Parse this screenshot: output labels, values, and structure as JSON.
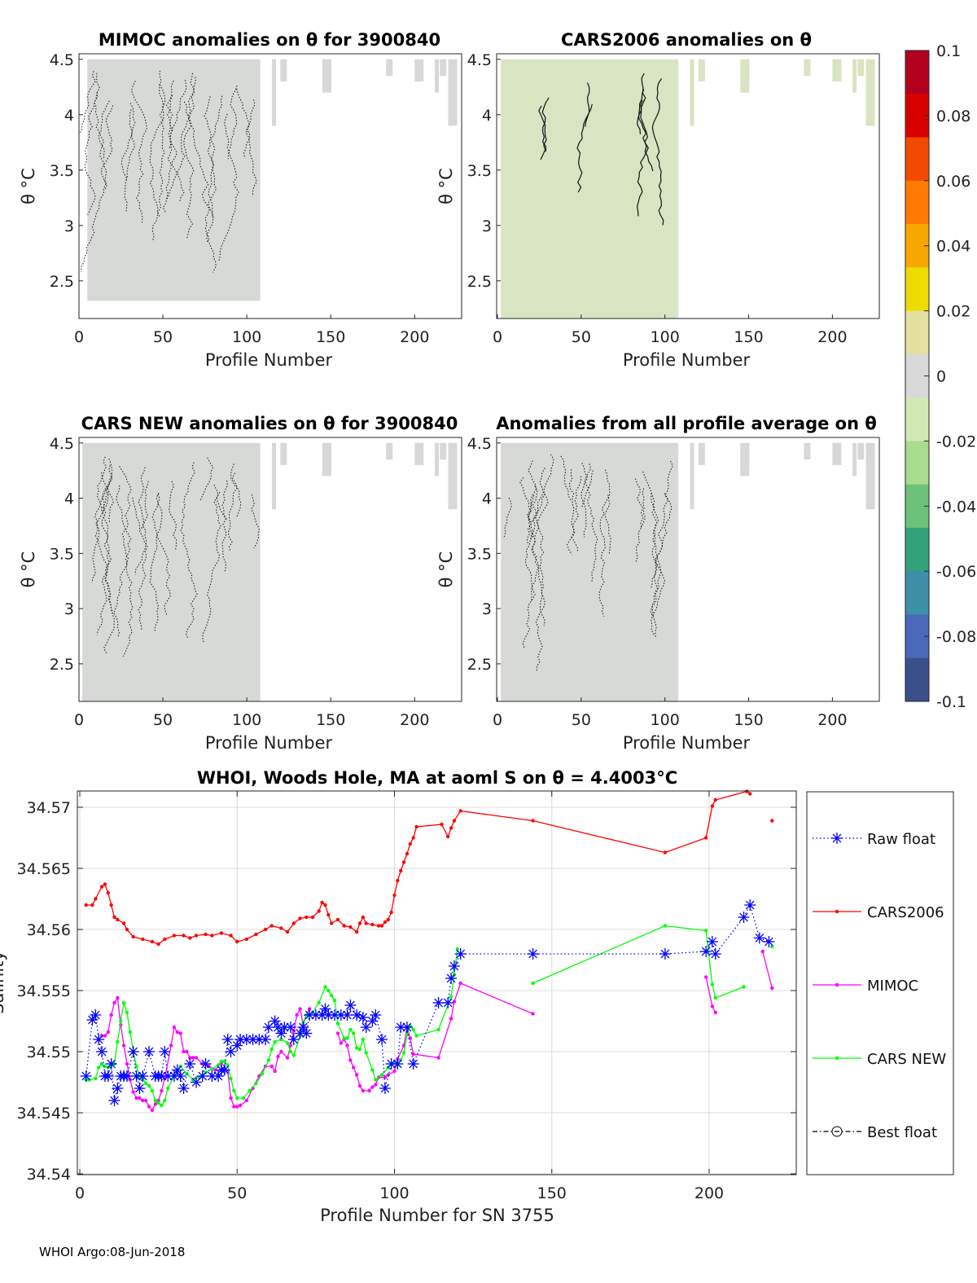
{
  "chart_data": [
    {
      "type": "heatmap",
      "title": "MIMOC anomalies on θ  for 3900840",
      "xlabel": "Profile Number",
      "ylabel": "θ °C",
      "xlim": [
        0,
        228
      ],
      "ylim": [
        2.16,
        4.55
      ],
      "xticks": [
        "0",
        "50",
        "100",
        "150",
        "200"
      ],
      "yticks": [
        "2.5",
        "3",
        "3.5",
        "4",
        "4.5"
      ],
      "data_extent": {
        "profiles": [
          5,
          108
        ],
        "theta": [
          2.32,
          4.5
        ]
      },
      "contour_style": "dotted"
    },
    {
      "type": "heatmap",
      "title": "CARS2006 anomalies on θ",
      "xlabel": "Profile Number",
      "ylabel": "θ °C",
      "xlim": [
        0,
        228
      ],
      "ylim": [
        2.16,
        4.55
      ],
      "xticks": [
        "0",
        "50",
        "100",
        "150",
        "200"
      ],
      "yticks": [
        "2.5",
        "3",
        "3.5",
        "4",
        "4.5"
      ],
      "data_extent": {
        "profiles": [
          2,
          108
        ],
        "theta": [
          2.16,
          4.5
        ]
      },
      "contour_style": "solid"
    },
    {
      "type": "heatmap",
      "title": "CARS NEW anomalies on θ for 3900840",
      "xlabel": "Profile Number",
      "ylabel": "θ °C",
      "xlim": [
        0,
        228
      ],
      "ylim": [
        2.16,
        4.55
      ],
      "xticks": [
        "0",
        "50",
        "100",
        "150",
        "200"
      ],
      "yticks": [
        "2.5",
        "3",
        "3.5",
        "4",
        "4.5"
      ],
      "data_extent": {
        "profiles": [
          2,
          108
        ],
        "theta": [
          2.16,
          4.5
        ]
      },
      "contour_style": "dotted"
    },
    {
      "type": "heatmap",
      "title": "Anomalies from all profile average on θ",
      "xlabel": "Profile Number",
      "ylabel": "θ °C",
      "xlim": [
        0,
        228
      ],
      "ylim": [
        2.16,
        4.55
      ],
      "xticks": [
        "0",
        "50",
        "100",
        "150",
        "200"
      ],
      "yticks": [
        "2.5",
        "3",
        "3.5",
        "4",
        "4.5"
      ],
      "data_extent": {
        "profiles": [
          2,
          108
        ],
        "theta": [
          2.16,
          4.5
        ]
      },
      "contour_style": "dotted"
    },
    {
      "type": "colorbar",
      "range": [
        -0.1,
        0.1
      ],
      "ticks": [
        "0.1",
        "0.08",
        "0.06",
        "0.04",
        "0.02",
        "0",
        "-0.02",
        "-0.04",
        "-0.06",
        "-0.08",
        "-0.1"
      ],
      "colors": [
        "#3b4f8a",
        "#4a68b8",
        "#3b8fa6",
        "#31a27a",
        "#6cc27a",
        "#a9dc8e",
        "#d3e9b4",
        "#d9d9d9",
        "#e4e0a0",
        "#eedb00",
        "#f6a800",
        "#ff7a00",
        "#f24a00",
        "#d90000",
        "#b3001f"
      ]
    },
    {
      "type": "line",
      "title": "WHOI, Woods Hole, MA at aoml S on θ = 4.4003°C",
      "xlabel": "Profile Number for SN 3755",
      "ylabel": "Salinity",
      "xlim": [
        -1,
        228
      ],
      "ylim": [
        34.54,
        34.5713
      ],
      "xticks": [
        "0",
        "50",
        "100",
        "150",
        "200"
      ],
      "yticks": [
        "34.54",
        "34.545",
        "34.55",
        "34.555",
        "34.56",
        "34.565",
        "34.57"
      ],
      "grid": true,
      "legend_placement": "right-outside",
      "series": [
        {
          "name": "Raw float",
          "color": "#0000ff",
          "style": "dotted-asterisk",
          "x": [
            2,
            4,
            5,
            6,
            7,
            8,
            9,
            10,
            11,
            12,
            13,
            14,
            15,
            17,
            18,
            19,
            20,
            22,
            24,
            25,
            26,
            27,
            28,
            30,
            31,
            32,
            33,
            35,
            37,
            39,
            40,
            42,
            44,
            45,
            46,
            47,
            48,
            50,
            51,
            53,
            55,
            57,
            59,
            60,
            62,
            63,
            64,
            65,
            67,
            68,
            70,
            71,
            72,
            73,
            75,
            77,
            78,
            79,
            81,
            83,
            85,
            86,
            88,
            90,
            91,
            93,
            94,
            96,
            97,
            99,
            101,
            102,
            104,
            106,
            114,
            117,
            118,
            119,
            121,
            144,
            186,
            199,
            201,
            202,
            211,
            213,
            216,
            219
          ],
          "y": [
            34.548,
            34.5526,
            34.553,
            34.551,
            34.55,
            34.548,
            34.548,
            34.549,
            34.546,
            34.547,
            34.548,
            34.548,
            34.548,
            34.55,
            34.548,
            34.547,
            34.548,
            34.55,
            34.548,
            34.548,
            34.548,
            34.55,
            34.548,
            34.548,
            34.5485,
            34.548,
            34.547,
            34.549,
            34.5475,
            34.548,
            34.549,
            34.548,
            34.548,
            34.5485,
            34.5485,
            34.551,
            34.55,
            34.5505,
            34.551,
            34.551,
            34.551,
            34.551,
            34.551,
            34.552,
            34.5525,
            34.552,
            34.5515,
            34.552,
            34.552,
            34.551,
            34.5515,
            34.552,
            34.5515,
            34.553,
            34.553,
            34.553,
            34.5535,
            34.553,
            34.553,
            34.553,
            34.553,
            34.5538,
            34.553,
            34.5528,
            34.552,
            34.5525,
            34.553,
            34.551,
            34.547,
            34.549,
            34.549,
            34.552,
            34.552,
            34.549,
            34.554,
            34.554,
            34.556,
            34.557,
            34.558,
            34.558,
            34.558,
            34.5582,
            34.559,
            34.558,
            34.561,
            34.562,
            34.5593,
            34.559
          ]
        },
        {
          "name": "CARS2006",
          "color": "#ff0000",
          "style": "solid-dot",
          "x": [
            2,
            4,
            5,
            7,
            8,
            9,
            10,
            11,
            12,
            14,
            15,
            17,
            20,
            23,
            25,
            27,
            30,
            33,
            35,
            37,
            40,
            42,
            45,
            48,
            50,
            53,
            56,
            59,
            61,
            64,
            66,
            68,
            70,
            72,
            74,
            76,
            77,
            78,
            79,
            80,
            82,
            84,
            86,
            88,
            89,
            90,
            91,
            93,
            95,
            96,
            97,
            98,
            99,
            100,
            101,
            102,
            103,
            104,
            105,
            106,
            107,
            115,
            117,
            118,
            119,
            121,
            144,
            186,
            199,
            201,
            202,
            212,
            213,
            null,
            220
          ],
          "y": [
            34.562,
            34.562,
            34.5625,
            34.5635,
            34.5637,
            34.563,
            34.562,
            34.561,
            34.5608,
            34.5605,
            34.56,
            34.5594,
            34.5592,
            34.559,
            34.5588,
            34.5592,
            34.5595,
            34.5595,
            34.5593,
            34.5595,
            34.5596,
            34.5595,
            34.5597,
            34.5595,
            34.559,
            34.5592,
            34.5596,
            34.56,
            34.5603,
            34.5601,
            34.5598,
            34.5605,
            34.5609,
            34.561,
            34.561,
            34.5615,
            34.5622,
            34.562,
            34.5612,
            34.5605,
            34.5608,
            34.5603,
            34.5602,
            34.5598,
            34.5605,
            34.561,
            34.5605,
            34.5604,
            34.5603,
            34.5603,
            34.5606,
            34.5608,
            34.5614,
            34.5628,
            34.564,
            34.5648,
            34.5655,
            34.5662,
            34.567,
            34.5675,
            34.5684,
            34.5686,
            34.5676,
            34.5683,
            34.5689,
            34.5697,
            34.5689,
            34.5663,
            34.5675,
            34.5701,
            34.5706,
            34.5713,
            34.5711,
            null,
            34.5689
          ]
        },
        {
          "name": "MIMOC",
          "color": "#ff00ff",
          "style": "solid-dot",
          "x": [
            7,
            8,
            9,
            10,
            11,
            12,
            13,
            14,
            15,
            16,
            17,
            18,
            19,
            20,
            21,
            22,
            23,
            24,
            25,
            26,
            27,
            29,
            30,
            31,
            32,
            33,
            34,
            35,
            36,
            37,
            39,
            41,
            43,
            45,
            47,
            48,
            49,
            50,
            51,
            53,
            55,
            57,
            59,
            61,
            62,
            63,
            64,
            66,
            67,
            68,
            69,
            70,
            71,
            72,
            73,
            null,
            82,
            83,
            84,
            85,
            86,
            87,
            88,
            89,
            90,
            92,
            93,
            94,
            95,
            97,
            98,
            100,
            101,
            103,
            104,
            105,
            106,
            114,
            118,
            119,
            121,
            144,
            null,
            199,
            201,
            202,
            null,
            217,
            220
          ],
          "y": [
            34.5513,
            34.5513,
            34.5516,
            34.553,
            34.554,
            34.5544,
            34.5522,
            34.5505,
            34.549,
            34.5477,
            34.5467,
            34.5462,
            34.5462,
            34.546,
            34.546,
            34.5455,
            34.5452,
            34.5457,
            34.546,
            34.5468,
            34.5478,
            34.5505,
            34.552,
            34.5516,
            34.5515,
            34.55,
            34.55,
            34.5495,
            34.5495,
            34.5495,
            34.549,
            34.5488,
            34.5485,
            34.5491,
            34.5484,
            34.5462,
            34.5455,
            34.5455,
            34.5456,
            34.546,
            34.547,
            34.548,
            34.5488,
            34.5488,
            34.5484,
            34.5496,
            34.55,
            34.5495,
            34.5505,
            34.5517,
            34.553,
            34.5535,
            34.5522,
            34.553,
            34.5535,
            null,
            34.5515,
            34.5507,
            34.551,
            34.5505,
            34.5493,
            34.5487,
            34.5481,
            34.5472,
            34.5468,
            34.5468,
            34.5471,
            34.5473,
            34.5479,
            34.5479,
            34.5481,
            34.5484,
            34.5494,
            34.5505,
            34.552,
            34.5511,
            34.5498,
            34.5495,
            34.5527,
            34.5541,
            34.5556,
            34.5531,
            null,
            34.5561,
            34.5537,
            34.5532,
            null,
            34.5582,
            34.5552
          ]
        },
        {
          "name": "CARS NEW",
          "color": "#00ff00",
          "style": "solid-dot",
          "x": [
            2,
            3,
            5,
            6,
            7,
            8,
            9,
            11,
            12,
            13,
            14,
            15,
            16,
            17,
            18,
            19,
            20,
            21,
            22,
            23,
            24,
            25,
            26,
            27,
            28,
            30,
            32,
            34,
            36,
            38,
            40,
            42,
            44,
            45,
            46,
            47,
            48,
            49,
            50,
            52,
            54,
            56,
            58,
            60,
            61,
            62,
            64,
            66,
            67,
            68,
            70,
            71,
            72,
            74,
            76,
            78,
            79,
            80,
            81,
            82,
            84,
            85,
            86,
            87,
            88,
            89,
            90,
            91,
            93,
            94,
            96,
            98,
            100,
            101,
            102,
            103,
            104,
            105,
            106,
            107,
            114,
            118,
            119,
            120,
            null,
            144,
            186,
            199,
            201,
            202,
            211,
            null,
            220
          ],
          "y": [
            34.5477,
            34.5477,
            34.5478,
            34.5487,
            34.549,
            34.5488,
            34.5487,
            34.549,
            34.5508,
            34.5525,
            34.554,
            34.5532,
            34.5516,
            34.55,
            34.5488,
            34.548,
            34.5478,
            34.5474,
            34.5472,
            34.5468,
            34.546,
            34.5458,
            34.5456,
            34.546,
            34.547,
            34.548,
            34.5488,
            34.5482,
            34.5477,
            34.5479,
            34.5483,
            34.5486,
            34.5489,
            34.5492,
            34.5492,
            34.5489,
            34.5478,
            34.5468,
            34.5462,
            34.5462,
            34.5468,
            34.5474,
            34.5482,
            34.5493,
            34.5502,
            34.5508,
            34.551,
            34.5507,
            34.55,
            34.5497,
            34.5513,
            34.5524,
            34.553,
            34.5532,
            34.554,
            34.5553,
            34.555,
            34.5546,
            34.5542,
            34.5523,
            34.5511,
            34.5511,
            34.5518,
            34.5515,
            34.5503,
            34.5502,
            34.551,
            34.5499,
            34.5485,
            34.5477,
            34.5481,
            34.5487,
            34.5491,
            34.5489,
            34.5493,
            34.5499,
            34.5514,
            34.5521,
            34.5518,
            34.5513,
            34.5518,
            34.5545,
            34.5563,
            34.5584,
            null,
            34.5556,
            34.5603,
            34.5599,
            34.5555,
            34.5544,
            34.5553,
            null,
            34.5586
          ]
        },
        {
          "name": "Best float",
          "color": "#000000",
          "style": "dashdot-circle",
          "x": [],
          "y": []
        }
      ]
    }
  ],
  "footer": "WHOI Argo:08-Jun-2018"
}
